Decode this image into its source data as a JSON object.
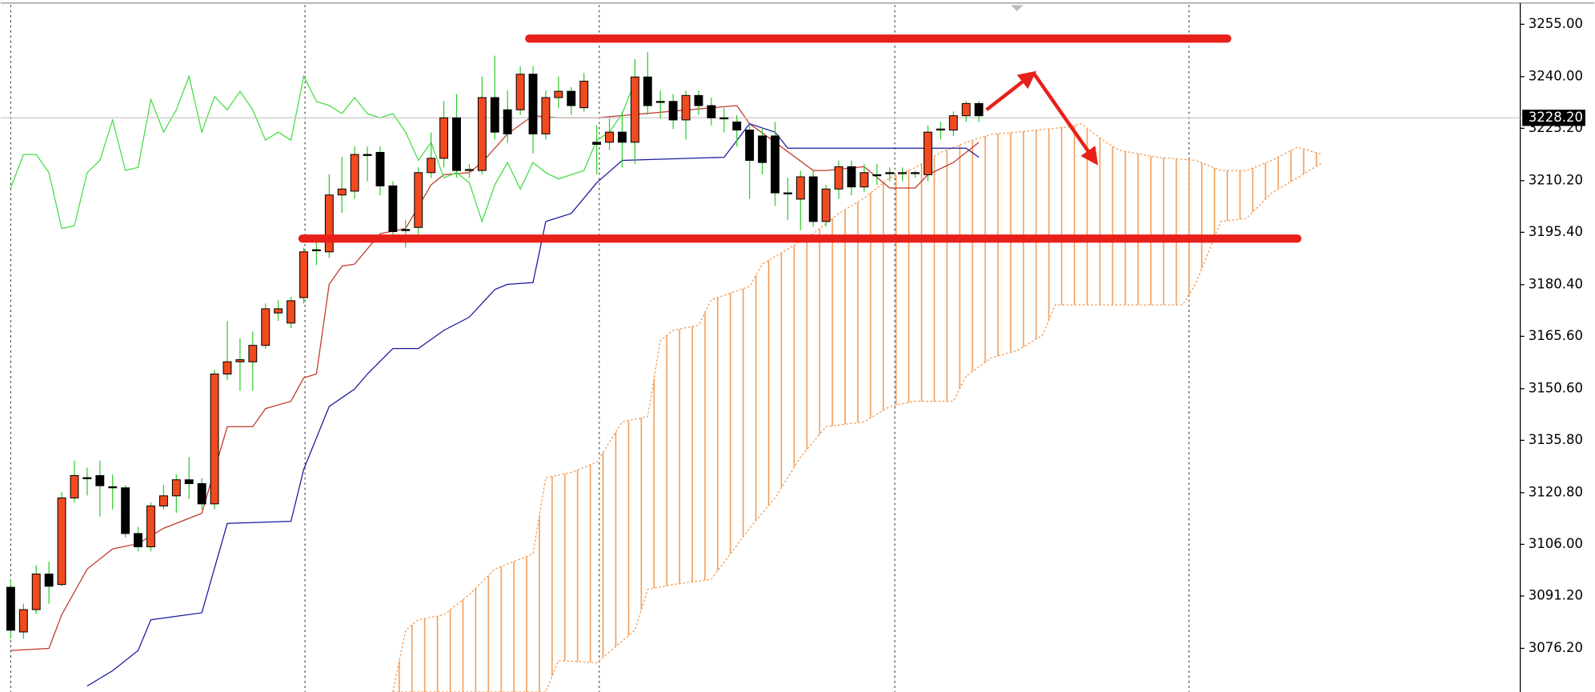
{
  "chart_data": {
    "type": "candlestick",
    "xlim": [
      -0.8,
      118.5
    ],
    "ylim": [
      3063.7,
      3260.5
    ],
    "xticks": [
      0,
      23.1,
      46.2,
      69.4,
      92.5
    ],
    "grid": true,
    "yticks": [
      {
        "value": 3255,
        "label": "3255.00"
      },
      {
        "value": 3240,
        "label": "3240.00"
      },
      {
        "value": 3225.2,
        "label": "3225.20"
      },
      {
        "value": 3210.2,
        "label": "3210.20"
      },
      {
        "value": 3195.4,
        "label": "3195.40"
      },
      {
        "value": 3180.4,
        "label": "3180.40"
      },
      {
        "value": 3165.6,
        "label": "3165.60"
      },
      {
        "value": 3150.6,
        "label": "3150.60"
      },
      {
        "value": 3135.8,
        "label": "3135.80"
      },
      {
        "value": 3120.8,
        "label": "3120.80"
      },
      {
        "value": 3106,
        "label": "3106.00"
      },
      {
        "value": 3091.2,
        "label": "3091.20"
      },
      {
        "value": 3076.2,
        "label": "3076.20"
      }
    ],
    "current_price": {
      "value": 3228.2,
      "label": "3228.20"
    },
    "up_color": "#f04a1e",
    "down_color": "#000000",
    "wick_color": "#33cc33",
    "candles": [
      [
        3093.7,
        3096,
        3079,
        3081.4
      ],
      [
        3080.9,
        3089,
        3079,
        3087.3
      ],
      [
        3087.3,
        3100,
        3086,
        3097.5
      ],
      [
        3097.5,
        3101,
        3089,
        3094.0
      ],
      [
        3094.5,
        3121,
        3094,
        3119.3
      ],
      [
        3119.3,
        3130,
        3118,
        3125.7
      ],
      [
        3125.1,
        3128,
        3120,
        3124.8
      ],
      [
        3125.7,
        3130,
        3114,
        3122.8
      ],
      [
        3122.5,
        3126,
        3116,
        3122.2
      ],
      [
        3122.2,
        3123,
        3108,
        3109.1
      ],
      [
        3109.1,
        3111,
        3104,
        3105.3
      ],
      [
        3105.3,
        3118,
        3104,
        3117.0
      ],
      [
        3117.0,
        3123,
        3116,
        3119.9
      ],
      [
        3119.9,
        3126,
        3115,
        3124.5
      ],
      [
        3124.5,
        3131,
        3119,
        3123.4
      ],
      [
        3123.4,
        3125,
        3116,
        3117.6
      ],
      [
        3117.6,
        3156,
        3116,
        3154.8
      ],
      [
        3154.8,
        3170,
        3153,
        3158.3
      ],
      [
        3158.3,
        3165,
        3150,
        3158.9
      ],
      [
        3158.3,
        3167,
        3150,
        3163.0
      ],
      [
        3163.0,
        3175,
        3162,
        3173.5
      ],
      [
        3172.3,
        3176,
        3170,
        3173.5
      ],
      [
        3169.4,
        3177,
        3168,
        3175.8
      ],
      [
        3176.7,
        3191,
        3175,
        3189.8
      ],
      [
        3190.4,
        3193,
        3186,
        3190.2
      ],
      [
        3189.8,
        3212,
        3188,
        3206.1
      ],
      [
        3206.1,
        3217,
        3201,
        3207.8
      ],
      [
        3207.2,
        3220,
        3205,
        3217.7
      ],
      [
        3217.7,
        3220,
        3210,
        3217.4
      ],
      [
        3218.3,
        3220,
        3206,
        3208.7
      ],
      [
        3208.7,
        3210,
        3193,
        3195.6
      ],
      [
        3196.2,
        3199,
        3191,
        3195.9
      ],
      [
        3196.8,
        3214,
        3194,
        3212.5
      ],
      [
        3212.5,
        3224,
        3211,
        3216.6
      ],
      [
        3216.6,
        3233,
        3214,
        3228.2
      ],
      [
        3228.2,
        3235,
        3211,
        3213.1
      ],
      [
        3213.1,
        3215,
        3211,
        3213.4
      ],
      [
        3213.1,
        3240,
        3212,
        3234.0
      ],
      [
        3234.0,
        3246,
        3222,
        3224.1
      ],
      [
        3230.5,
        3236,
        3221,
        3223.6
      ],
      [
        3230.5,
        3243,
        3229,
        3240.7
      ],
      [
        3240.7,
        3243,
        3218,
        3223.6
      ],
      [
        3223.6,
        3236,
        3222,
        3234.0
      ],
      [
        3234.0,
        3240,
        3231,
        3235.8
      ],
      [
        3235.8,
        3237,
        3229,
        3231.7
      ],
      [
        3231.1,
        3241,
        3230,
        3238.7
      ],
      [
        3221.2,
        3226,
        3212,
        3220.6
      ],
      [
        3221.2,
        3228,
        3219,
        3224.1
      ],
      [
        3224.1,
        3230,
        3214,
        3221.2
      ],
      [
        3221.2,
        3245,
        3215,
        3239.9
      ],
      [
        3239.9,
        3247,
        3229,
        3231.7
      ],
      [
        3232.9,
        3236,
        3228,
        3232.6
      ],
      [
        3232.9,
        3235,
        3225,
        3227.6
      ],
      [
        3227.6,
        3236,
        3222,
        3234.6
      ],
      [
        3234.6,
        3236,
        3229,
        3231.7
      ],
      [
        3231.7,
        3234,
        3226,
        3228.2
      ],
      [
        3228.2,
        3231,
        3224,
        3227.9
      ],
      [
        3227.0,
        3229,
        3220,
        3224.7
      ],
      [
        3224.7,
        3226,
        3205,
        3216.0
      ],
      [
        3223.0,
        3225,
        3212,
        3215.4
      ],
      [
        3223.0,
        3227,
        3203,
        3206.7
      ],
      [
        3206.7,
        3211,
        3199,
        3206.4
      ],
      [
        3204.9,
        3213,
        3196,
        3211.3
      ],
      [
        3211.3,
        3213,
        3197,
        3198.5
      ],
      [
        3198.5,
        3209,
        3197,
        3207.8
      ],
      [
        3207.8,
        3216,
        3205,
        3214.2
      ],
      [
        3214.2,
        3216,
        3206,
        3208.4
      ],
      [
        3208.4,
        3215,
        3207,
        3212.5
      ],
      [
        3211.9,
        3215,
        3209,
        3211.6
      ],
      [
        3212.5,
        3214,
        3210,
        3212.2
      ],
      [
        3212.2,
        3214,
        3210,
        3212.5
      ],
      [
        3212.5,
        3213,
        3211,
        3212.2
      ],
      [
        3211.9,
        3226,
        3210,
        3224.1
      ],
      [
        3224.7,
        3227,
        3222,
        3225.0
      ],
      [
        3224.7,
        3230,
        3223,
        3228.8
      ],
      [
        3228.8,
        3233,
        3227,
        3232.3
      ],
      [
        3232.3,
        3233,
        3227,
        3228.8
      ]
    ],
    "lines": [
      {
        "color": "#c0392b",
        "dash": false,
        "x": [
          0,
          3,
          4,
          6,
          8,
          10,
          12,
          15,
          17,
          19,
          20,
          22,
          23,
          24,
          25,
          26,
          27,
          29,
          31,
          33,
          34,
          36,
          37,
          39,
          41,
          43,
          46,
          57,
          58,
          60,
          63,
          64,
          67,
          69,
          71,
          72,
          74,
          75,
          76
        ],
        "values": [
          3075.6,
          3076.2,
          3085.8,
          3098.9,
          3104.7,
          3106.2,
          3110.6,
          3114.9,
          3139.7,
          3139.7,
          3144.9,
          3147.0,
          3153.7,
          3154.8,
          3180.5,
          3185.7,
          3186.3,
          3195.0,
          3196.5,
          3209.0,
          3211.9,
          3212.5,
          3215.4,
          3223.6,
          3228.8,
          3228.2,
          3228.2,
          3231.7,
          3226.5,
          3221.2,
          3213.1,
          3213.1,
          3214.2,
          3208.1,
          3208.1,
          3211.9,
          3215.4,
          3218.3,
          3221.2
        ]
      },
      {
        "color": "#1a1a9c",
        "dash": false,
        "x": [
          6,
          8,
          10,
          11,
          15,
          17,
          22,
          23,
          25,
          27,
          28,
          30,
          32,
          34,
          36,
          38,
          39,
          41,
          42,
          44,
          46,
          48,
          56,
          58,
          60,
          61,
          75,
          76
        ],
        "values": [
          3065.4,
          3069.8,
          3075.6,
          3084.4,
          3086.4,
          3112.0,
          3112.6,
          3127.5,
          3145.5,
          3150.5,
          3154.8,
          3162.1,
          3162.1,
          3167.3,
          3171.1,
          3179.0,
          3180.5,
          3181.0,
          3198.5,
          3200.8,
          3209.6,
          3216.0,
          3216.9,
          3226.5,
          3224.1,
          3219.5,
          3219.5,
          3216.9
        ]
      },
      {
        "color": "#44dd44",
        "dash": false,
        "x": [
          0,
          1,
          2,
          3,
          4,
          5,
          6,
          7,
          8,
          9,
          10,
          11,
          12,
          13,
          14,
          15,
          16,
          17,
          18,
          19,
          20,
          21,
          22,
          23,
          24,
          25,
          26,
          27,
          28,
          29,
          30,
          31,
          32,
          33,
          34,
          35,
          36,
          37,
          38,
          39,
          40,
          41,
          42,
          43,
          44,
          45,
          46,
          47,
          48,
          49
        ],
        "values": [
          3208.1,
          3217.7,
          3217.7,
          3212.5,
          3196.5,
          3197.3,
          3212.5,
          3216.0,
          3227.6,
          3213.1,
          3214.0,
          3233.5,
          3224.1,
          3230.5,
          3240.1,
          3224.1,
          3234.3,
          3230.5,
          3235.8,
          3230.5,
          3221.8,
          3224.1,
          3221.8,
          3240.1,
          3232.9,
          3231.7,
          3229.4,
          3234.0,
          3229.4,
          3228.2,
          3229.4,
          3224.1,
          3216.0,
          3221.2,
          3211.0,
          3212.5,
          3209.6,
          3198.5,
          3209.0,
          3215.4,
          3207.8,
          3215.4,
          3212.5,
          3210.7,
          3211.9,
          3213.1,
          3221.8,
          3224.1,
          3229.4,
          3238.7
        ]
      }
    ],
    "cloud": {
      "color": "#f09850",
      "upper": {
        "x": [
          30,
          31,
          32,
          34,
          36,
          38,
          41,
          42,
          44,
          46,
          48,
          50,
          51,
          52,
          54,
          55,
          58,
          59,
          61,
          63,
          65,
          67,
          69,
          71,
          73,
          75,
          77,
          79,
          83,
          84,
          86,
          87,
          90,
          93,
          95,
          97,
          99,
          101,
          103
        ],
        "values": [
          3063.7,
          3081.4,
          3084.4,
          3085.8,
          3091.6,
          3098.9,
          3103.3,
          3125.1,
          3126.6,
          3129.5,
          3141.1,
          3142.6,
          3164.4,
          3167.3,
          3168.8,
          3176.1,
          3179.9,
          3186.3,
          3190.6,
          3195.0,
          3200.8,
          3205.2,
          3211.0,
          3213.9,
          3218.3,
          3221.2,
          3223.5,
          3224.1,
          3225.6,
          3226.5,
          3221.2,
          3218.9,
          3216.9,
          3216.0,
          3213.1,
          3213.1,
          3216.0,
          3219.8,
          3217.7
        ]
      },
      "lower": {
        "x": [
          30,
          42,
          43,
          46,
          49,
          50,
          52,
          55,
          58,
          60,
          62,
          64,
          67,
          69,
          71,
          74,
          75,
          77,
          79,
          81,
          82,
          92,
          93,
          95,
          97,
          99,
          101,
          103
        ],
        "values": [
          3063.7,
          3063.7,
          3072.7,
          3072.1,
          3081.4,
          3093.1,
          3094.5,
          3096.0,
          3110.6,
          3119.3,
          3131.0,
          3139.7,
          3141.1,
          3145.5,
          3147.0,
          3147.0,
          3154.2,
          3159.5,
          3161.5,
          3165.9,
          3174.6,
          3174.6,
          3180.5,
          3198.5,
          3199.4,
          3206.7,
          3211.0,
          3215.4
        ]
      }
    },
    "annotation_color": "#e8201a",
    "hlines": [
      {
        "y": 3250.9,
        "x": [
          40.7,
          95.5
        ]
      },
      {
        "y": 3193.6,
        "x": [
          22.9,
          101
        ]
      }
    ],
    "arrows": [
      {
        "x": [
          76.6,
          80.3
        ],
        "y": [
          3230.5,
          3241.0
        ]
      },
      {
        "x": [
          80.3,
          85.2
        ],
        "y": [
          3241.0,
          3215.4
        ]
      }
    ]
  }
}
